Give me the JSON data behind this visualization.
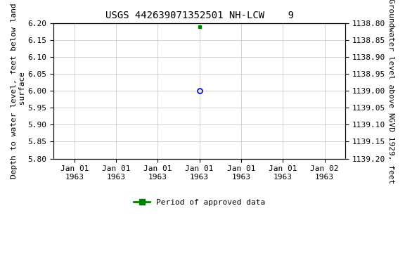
{
  "title": "USGS 442639071352501 NH-LCW    9",
  "ylabel_left": "Depth to water level, feet below land\n surface",
  "ylabel_right": "Groundwater level above NGVD 1929, feet",
  "ylim_left_top": 5.8,
  "ylim_left_bottom": 6.2,
  "yticks_left": [
    5.8,
    5.85,
    5.9,
    5.95,
    6.0,
    6.05,
    6.1,
    6.15,
    6.2
  ],
  "yticks_right": [
    1139.2,
    1139.15,
    1139.1,
    1139.05,
    1139.0,
    1138.95,
    1138.9,
    1138.85,
    1138.8
  ],
  "blue_point_x": 0.0,
  "blue_point_y": 6.0,
  "green_point_x": 0.0,
  "green_point_y": 6.19,
  "bg_color": "#ffffff",
  "grid_color": "#c0c0c0",
  "legend_label": "Period of approved data",
  "legend_color": "#008000",
  "blue_marker_color": "#0000cd",
  "title_fontsize": 10,
  "axis_fontsize": 8,
  "tick_fontsize": 8,
  "xtick_labels": [
    "Jan 01\n1963",
    "Jan 01\n1963",
    "Jan 01\n1963",
    "Jan 01\n1963",
    "Jan 01\n1963",
    "Jan 01\n1963",
    "Jan 02\n1963"
  ],
  "xtick_positions": [
    -3,
    -2,
    -1,
    0,
    1,
    2,
    3
  ],
  "xlim": [
    -3.5,
    3.5
  ]
}
